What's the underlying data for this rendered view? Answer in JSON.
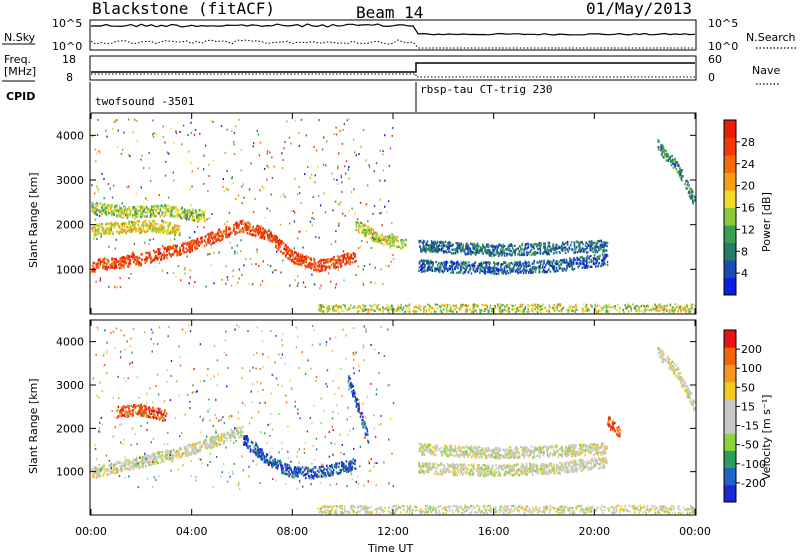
{
  "header": {
    "station": "Blackstone (fitACF)",
    "beam": "Beam 14",
    "date": "01/May/2013"
  },
  "top_panels": {
    "nsky_label": "N.Sky",
    "nsearch_label": "N.Search",
    "nsky_ticks": [
      "10^5",
      "10^0"
    ],
    "nsearch_ticks": [
      "10^5",
      "10^0"
    ],
    "freq_label_1": "Freq.",
    "freq_label_2": "[MHz]",
    "freq_ticks": [
      "18",
      "8"
    ],
    "nave_label": "Nave",
    "nave_ticks": [
      "60",
      "0"
    ],
    "cpid_label": "CPID",
    "cpid_1": "twofsound -3501",
    "cpid_2": "rbsp-tau CT-trig 230"
  },
  "chart_data": [
    {
      "type": "heatmap",
      "name": "power",
      "ylabel": "Slant Range [km]",
      "xlabel": "",
      "y_ticks": [
        1000,
        2000,
        3000,
        4000
      ],
      "ylim": [
        0,
        4500
      ],
      "xlim_hours": [
        0,
        24
      ],
      "colorbar": {
        "label": "Power [dB]",
        "ticks": [
          4,
          8,
          12,
          16,
          20,
          24,
          28
        ],
        "colors": [
          "#0a1ee0",
          "#1a4ab4",
          "#2a7a6a",
          "#3aa050",
          "#8cc83c",
          "#f0dc28",
          "#f5a014",
          "#f56a0a",
          "#f03c0a",
          "#e61e0a"
        ]
      },
      "bands": [
        {
          "t": [
            0,
            2,
            4,
            6,
            7,
            8,
            9,
            10.5
          ],
          "r": [
            1100,
            1250,
            1550,
            2000,
            1800,
            1300,
            1100,
            1300
          ],
          "level": 0.9
        },
        {
          "t": [
            0,
            1,
            2.5,
            3.5
          ],
          "r": [
            1900,
            1950,
            2000,
            1900
          ],
          "level": 0.55
        },
        {
          "t": [
            0,
            1.5,
            3,
            4.5
          ],
          "r": [
            2400,
            2300,
            2350,
            2200
          ],
          "level": 0.45
        },
        {
          "t": [
            13,
            16,
            18.5,
            20.5
          ],
          "r": [
            1550,
            1450,
            1500,
            1550
          ],
          "level": 0.2
        },
        {
          "t": [
            13,
            16,
            18.5,
            20.5
          ],
          "r": [
            1100,
            1050,
            1100,
            1250
          ],
          "level": 0.15
        },
        {
          "t": [
            22.5,
            23.3,
            24
          ],
          "r": [
            3800,
            3300,
            2500
          ],
          "level": 0.25
        },
        {
          "t": [
            10.5,
            11.5,
            12.5
          ],
          "r": [
            2000,
            1700,
            1600
          ],
          "level": 0.5
        }
      ]
    },
    {
      "type": "heatmap",
      "name": "velocity",
      "ylabel": "Slant Range [km]",
      "xlabel": "Time UT",
      "x_ticks": [
        "00:00",
        "04:00",
        "08:00",
        "12:00",
        "16:00",
        "20:00",
        "00:00"
      ],
      "y_ticks": [
        1000,
        2000,
        3000,
        4000
      ],
      "ylim": [
        0,
        4500
      ],
      "xlim_hours": [
        0,
        24
      ],
      "colorbar": {
        "label": "Velocity [m s⁻¹]",
        "ticks": [
          "200",
          "100",
          "50",
          "15",
          "-15",
          "-50",
          "-100",
          "-200"
        ],
        "colors": [
          "#1e28d2",
          "#1e64c8",
          "#28a05a",
          "#8cd23c",
          "#c8c8c8",
          "#c8c8c8",
          "#f5c81e",
          "#f5961e",
          "#f0640a",
          "#e61414"
        ]
      },
      "bands": [
        {
          "t": [
            0,
            2,
            4,
            6
          ],
          "r": [
            1000,
            1250,
            1550,
            1950
          ],
          "level": 0.5
        },
        {
          "t": [
            6,
            7,
            8,
            9,
            10.5
          ],
          "r": [
            1800,
            1300,
            1000,
            1000,
            1200
          ],
          "level": 0.05
        },
        {
          "t": [
            1,
            2,
            3
          ],
          "r": [
            2400,
            2450,
            2300
          ],
          "level": 0.95
        },
        {
          "t": [
            13,
            16,
            18.5,
            20.5
          ],
          "r": [
            1550,
            1450,
            1500,
            1550
          ],
          "level": 0.5
        },
        {
          "t": [
            13,
            16,
            18.5,
            20.5
          ],
          "r": [
            1100,
            1050,
            1100,
            1250
          ],
          "level": 0.5
        },
        {
          "t": [
            20.5,
            21
          ],
          "r": [
            2200,
            1900
          ],
          "level": 0.95
        },
        {
          "t": [
            22.5,
            23.3,
            24
          ],
          "r": [
            3800,
            3300,
            2500
          ],
          "level": 0.5
        },
        {
          "t": [
            10.2,
            10.6,
            11
          ],
          "r": [
            3200,
            2500,
            1800
          ],
          "level": 0.05
        }
      ]
    }
  ]
}
